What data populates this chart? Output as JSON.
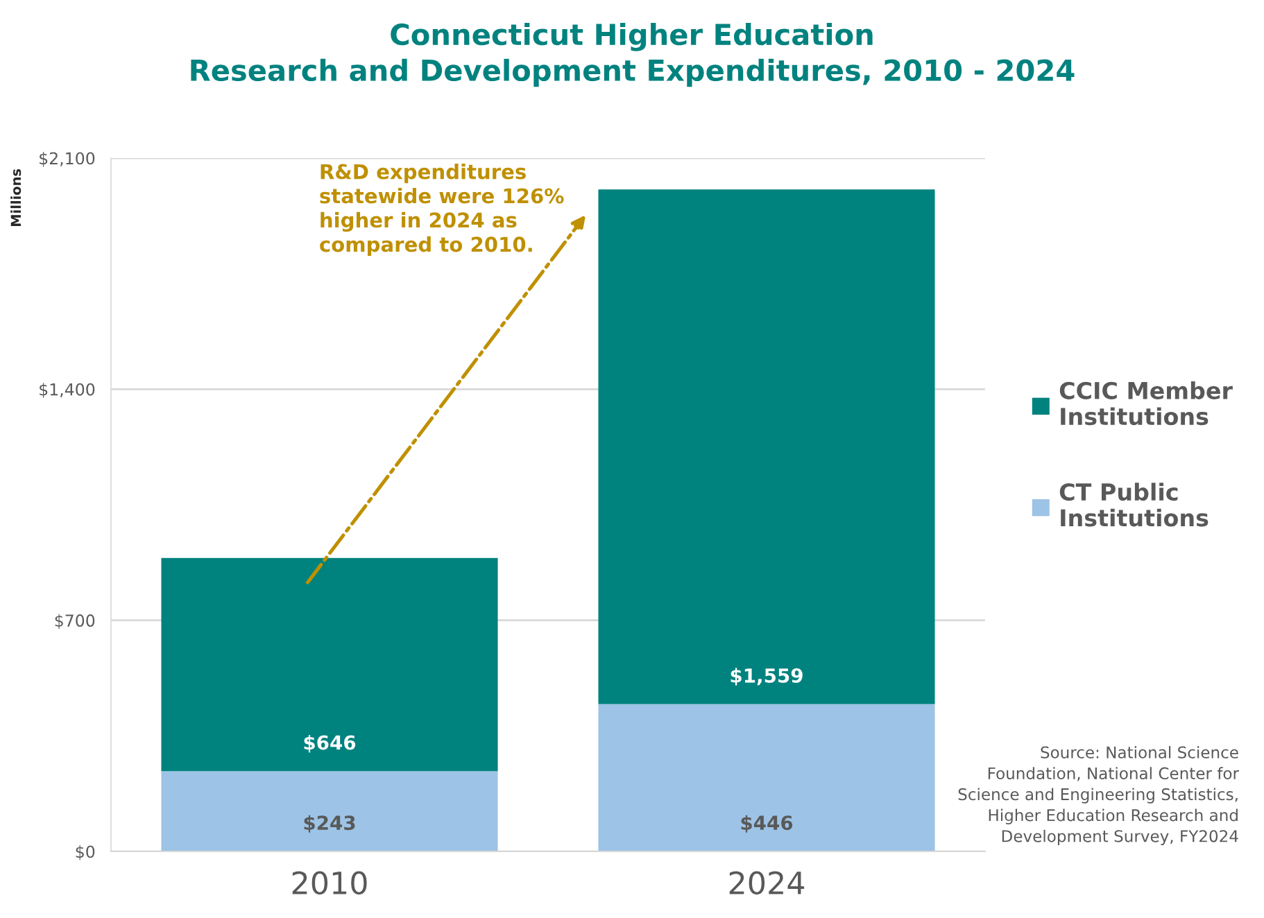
{
  "chart_data": {
    "type": "bar",
    "title": "Connecticut Higher Education\nResearch and Development Expenditures, 2010 - 2024",
    "ylabel": "Millions",
    "categories": [
      "2010",
      "2024"
    ],
    "stacked": true,
    "series": [
      {
        "name": "CT Public\nInstitutions",
        "color": "#9dc3e6",
        "values": [
          243,
          446
        ],
        "value_labels": [
          "$243",
          "$446"
        ]
      },
      {
        "name": "CCIC Member\nInstitutions",
        "color": "#00827f",
        "values": [
          646,
          1559
        ],
        "value_labels": [
          "$646",
          "$1,559"
        ]
      }
    ],
    "ylim": [
      0,
      2100
    ],
    "yticks": [
      {
        "value": 0,
        "label": "$0"
      },
      {
        "value": 700,
        "label": "$700"
      },
      {
        "value": 1400,
        "label": "$1,400"
      },
      {
        "value": 2100,
        "label": "$2,100"
      }
    ],
    "grid": "y",
    "legend": "right",
    "annotations": [
      "R&D expenditures\nstatewide were 126%\nhigher in 2024 as\ncompared to 2010.",
      "Source: National Science\nFoundation, National Center for\nScience and Engineering Statistics,\nHigher Education Research and\nDevelopment Survey, FY2024"
    ]
  }
}
